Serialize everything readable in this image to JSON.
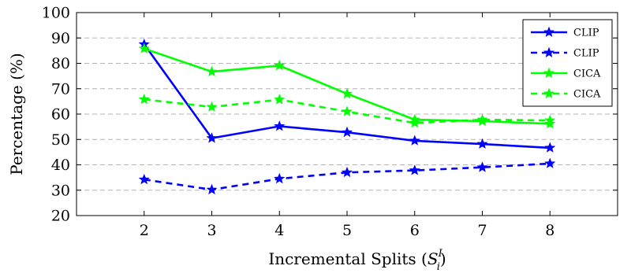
{
  "chart_data": {
    "type": "line",
    "title": "",
    "xlabel": "Incremental Splits (",
    "xlabel_symbol": "S",
    "xlabel_sup": "I",
    "xlabel_sub": "i",
    "xlabel_close": ")",
    "ylabel": "Percentage (%)",
    "x": [
      2,
      3,
      4,
      5,
      6,
      7,
      8
    ],
    "xlim": [
      1,
      9
    ],
    "ylim": [
      20,
      100
    ],
    "yticks": [
      20,
      30,
      40,
      50,
      60,
      70,
      80,
      90,
      100
    ],
    "grid": "horizontal dashed",
    "legend_position": "top-right",
    "series": [
      {
        "name": "CLIP",
        "color": "#0000ff",
        "style": "solid",
        "marker": "star",
        "values": [
          87.5,
          50.5,
          55.2,
          52.8,
          49.5,
          48.2,
          46.7
        ]
      },
      {
        "name": "CLIP",
        "color": "#0000ff",
        "style": "dashed",
        "marker": "star",
        "values": [
          34.2,
          30.2,
          34.5,
          37.0,
          37.8,
          39.0,
          40.5
        ]
      },
      {
        "name": "CICA",
        "color": "#00ff00",
        "style": "solid",
        "marker": "star",
        "values": [
          85.8,
          76.7,
          79.1,
          68.0,
          57.8,
          57.2,
          56.2
        ]
      },
      {
        "name": "CICA",
        "color": "#00ff00",
        "style": "dashed",
        "marker": "star",
        "values": [
          65.8,
          62.8,
          65.7,
          61.0,
          56.5,
          57.8,
          57.5
        ]
      }
    ]
  }
}
